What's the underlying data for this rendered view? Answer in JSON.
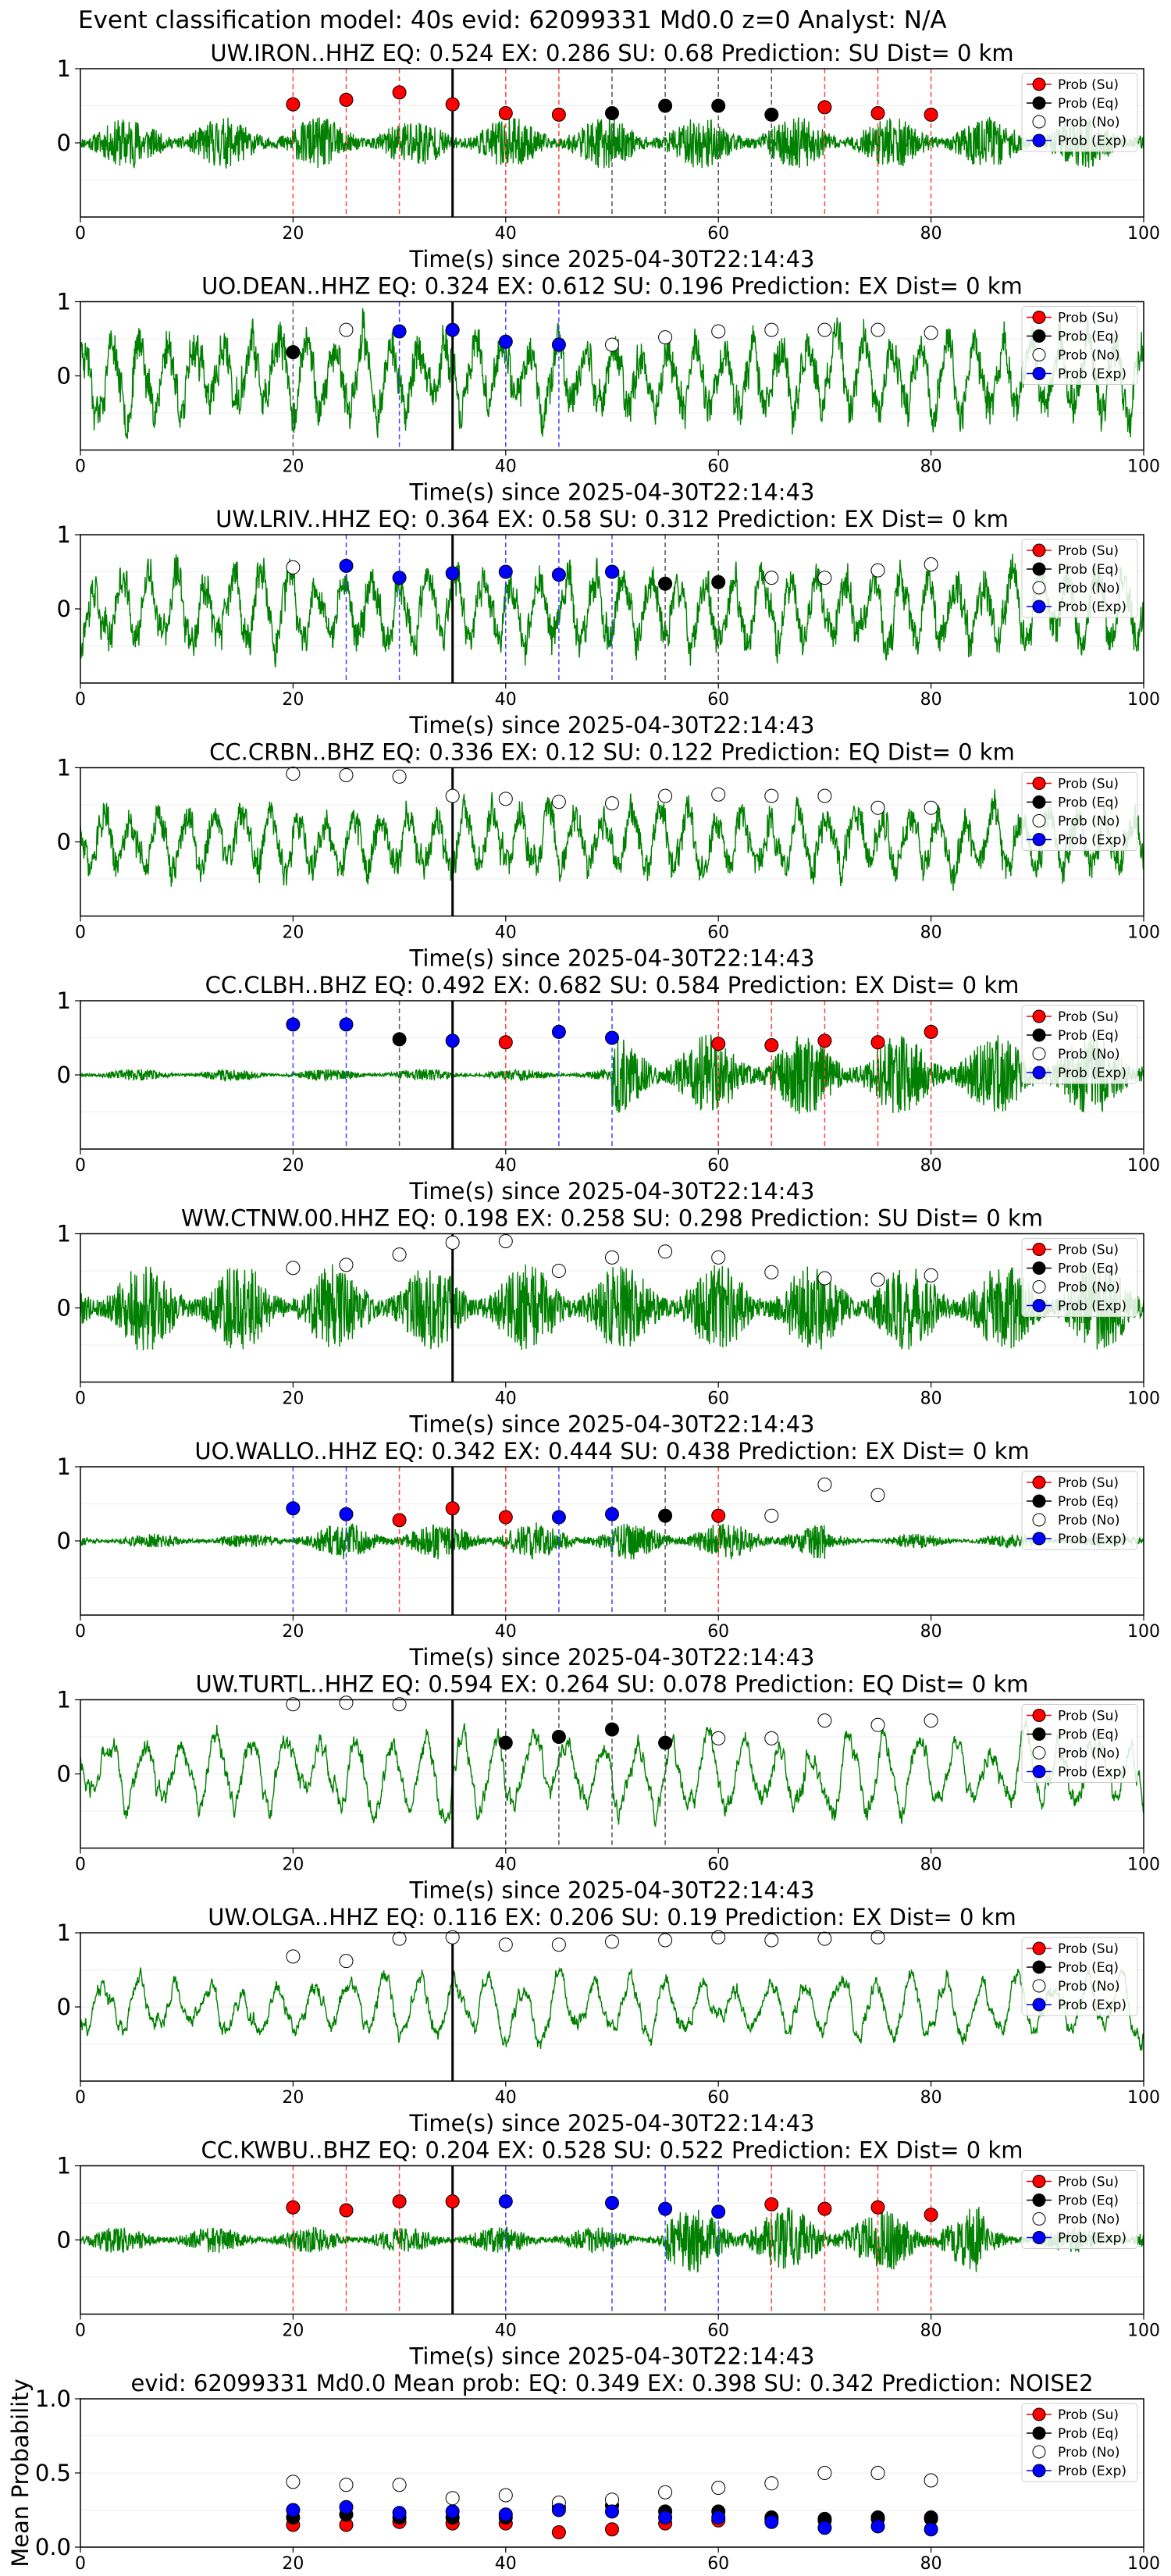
{
  "figure": {
    "suptitle": "Event classification model: 40s evid: 62099331 Md0.0 z=0 Analyst: N/A"
  },
  "legend_labels": [
    "Prob (Su)",
    "Prob (Eq)",
    "Prob (No)",
    "Prob (Exp)"
  ],
  "colors": {
    "waveform": "#008000",
    "su": "#ff0000",
    "eq": "#000000",
    "no": "#ffffff",
    "exp": "#0000ff",
    "event_line": "#000000"
  },
  "chart_data": [
    {
      "type": "line",
      "panel": "waveform",
      "title": "UW.IRON..HHZ   EQ: 0.524  EX: 0.286  SU: 0.68   Prediction: SU    Dist= 0 km",
      "xlabel": "Time(s) since 2025-04-30T22:14:43",
      "xlim": [
        0,
        100
      ],
      "ylim": [
        -1,
        1
      ],
      "xticks": [
        0,
        20,
        40,
        60,
        80,
        100
      ],
      "yticks": [
        0,
        1
      ],
      "event_line_x": 35,
      "noise_amp": 0.35,
      "seed": 11,
      "style": "noisy",
      "burst": null,
      "windows": [
        {
          "x": 20,
          "p": 0.52,
          "c": "su"
        },
        {
          "x": 25,
          "p": 0.58,
          "c": "su"
        },
        {
          "x": 30,
          "p": 0.68,
          "c": "su"
        },
        {
          "x": 35,
          "p": 0.52,
          "c": "su"
        },
        {
          "x": 40,
          "p": 0.4,
          "c": "su"
        },
        {
          "x": 45,
          "p": 0.38,
          "c": "su"
        },
        {
          "x": 50,
          "p": 0.4,
          "c": "eq"
        },
        {
          "x": 55,
          "p": 0.5,
          "c": "eq"
        },
        {
          "x": 60,
          "p": 0.5,
          "c": "eq"
        },
        {
          "x": 65,
          "p": 0.38,
          "c": "eq"
        },
        {
          "x": 70,
          "p": 0.48,
          "c": "su"
        },
        {
          "x": 75,
          "p": 0.4,
          "c": "su"
        },
        {
          "x": 80,
          "p": 0.38,
          "c": "su"
        }
      ]
    },
    {
      "type": "line",
      "panel": "waveform",
      "title": "UO.DEAN..HHZ   EQ: 0.324  EX: 0.612  SU: 0.196   Prediction: EX    Dist= 0 km",
      "xlabel": "Time(s) since 2025-04-30T22:14:43",
      "xlim": [
        0,
        100
      ],
      "ylim": [
        -1,
        1
      ],
      "xticks": [
        0,
        20,
        40,
        60,
        80,
        100
      ],
      "yticks": [
        0,
        1
      ],
      "event_line_x": 35,
      "noise_amp": 0.7,
      "seed": 23,
      "style": "wavy",
      "burst": null,
      "windows": [
        {
          "x": 20,
          "p": 0.32,
          "c": "eq"
        },
        {
          "x": 25,
          "p": 0.62,
          "c": "no"
        },
        {
          "x": 30,
          "p": 0.6,
          "c": "exp"
        },
        {
          "x": 35,
          "p": 0.62,
          "c": "exp"
        },
        {
          "x": 40,
          "p": 0.46,
          "c": "exp"
        },
        {
          "x": 45,
          "p": 0.42,
          "c": "exp"
        },
        {
          "x": 50,
          "p": 0.42,
          "c": "no"
        },
        {
          "x": 55,
          "p": 0.52,
          "c": "no"
        },
        {
          "x": 60,
          "p": 0.6,
          "c": "no"
        },
        {
          "x": 65,
          "p": 0.62,
          "c": "no"
        },
        {
          "x": 70,
          "p": 0.62,
          "c": "no"
        },
        {
          "x": 75,
          "p": 0.62,
          "c": "no"
        },
        {
          "x": 80,
          "p": 0.58,
          "c": "no"
        }
      ]
    },
    {
      "type": "line",
      "panel": "waveform",
      "title": "UW.LRIV..HHZ   EQ: 0.364  EX: 0.58  SU: 0.312   Prediction: EX    Dist= 0 km",
      "xlabel": "Time(s) since 2025-04-30T22:14:43",
      "xlim": [
        0,
        100
      ],
      "ylim": [
        -1,
        1
      ],
      "xticks": [
        0,
        20,
        40,
        60,
        80,
        100
      ],
      "yticks": [
        0,
        1
      ],
      "event_line_x": 35,
      "noise_amp": 0.65,
      "seed": 37,
      "style": "wavy",
      "burst": null,
      "windows": [
        {
          "x": 20,
          "p": 0.56,
          "c": "no"
        },
        {
          "x": 25,
          "p": 0.58,
          "c": "exp"
        },
        {
          "x": 30,
          "p": 0.42,
          "c": "exp"
        },
        {
          "x": 35,
          "p": 0.48,
          "c": "exp"
        },
        {
          "x": 40,
          "p": 0.5,
          "c": "exp"
        },
        {
          "x": 45,
          "p": 0.46,
          "c": "exp"
        },
        {
          "x": 50,
          "p": 0.5,
          "c": "exp"
        },
        {
          "x": 55,
          "p": 0.34,
          "c": "eq"
        },
        {
          "x": 60,
          "p": 0.36,
          "c": "eq"
        },
        {
          "x": 65,
          "p": 0.42,
          "c": "no"
        },
        {
          "x": 70,
          "p": 0.42,
          "c": "no"
        },
        {
          "x": 75,
          "p": 0.52,
          "c": "no"
        },
        {
          "x": 80,
          "p": 0.6,
          "c": "no"
        }
      ]
    },
    {
      "type": "line",
      "panel": "waveform",
      "title": "CC.CRBN..BHZ   EQ: 0.336  EX: 0.12  SU: 0.122   Prediction: EQ    Dist= 0 km",
      "xlabel": "Time(s) since 2025-04-30T22:14:43",
      "xlim": [
        0,
        100
      ],
      "ylim": [
        -1,
        1
      ],
      "xticks": [
        0,
        20,
        40,
        60,
        80,
        100
      ],
      "yticks": [
        0,
        1
      ],
      "event_line_x": 35,
      "noise_amp": 0.55,
      "seed": 51,
      "style": "wavy",
      "burst": null,
      "windows": [
        {
          "x": 20,
          "p": 0.92,
          "c": "no"
        },
        {
          "x": 25,
          "p": 0.9,
          "c": "no"
        },
        {
          "x": 30,
          "p": 0.88,
          "c": "no"
        },
        {
          "x": 35,
          "p": 0.62,
          "c": "no"
        },
        {
          "x": 40,
          "p": 0.58,
          "c": "no"
        },
        {
          "x": 45,
          "p": 0.54,
          "c": "no"
        },
        {
          "x": 50,
          "p": 0.52,
          "c": "no"
        },
        {
          "x": 55,
          "p": 0.62,
          "c": "no"
        },
        {
          "x": 60,
          "p": 0.64,
          "c": "no"
        },
        {
          "x": 65,
          "p": 0.62,
          "c": "no"
        },
        {
          "x": 70,
          "p": 0.62,
          "c": "no"
        },
        {
          "x": 75,
          "p": 0.46,
          "c": "no"
        },
        {
          "x": 80,
          "p": 0.46,
          "c": "no"
        }
      ]
    },
    {
      "type": "line",
      "panel": "waveform",
      "title": "CC.CLBH..BHZ   EQ: 0.492  EX: 0.682  SU: 0.584   Prediction: EX    Dist= 0 km",
      "xlabel": "Time(s) since 2025-04-30T22:14:43",
      "xlim": [
        0,
        100
      ],
      "ylim": [
        -1,
        1
      ],
      "xticks": [
        0,
        20,
        40,
        60,
        80,
        100
      ],
      "yticks": [
        0,
        1
      ],
      "event_line_x": 35,
      "noise_amp": 0.08,
      "seed": 67,
      "style": "noisy",
      "burst": [
        50,
        100,
        0.55
      ],
      "windows": [
        {
          "x": 20,
          "p": 0.68,
          "c": "exp"
        },
        {
          "x": 25,
          "p": 0.68,
          "c": "exp"
        },
        {
          "x": 30,
          "p": 0.48,
          "c": "eq"
        },
        {
          "x": 35,
          "p": 0.46,
          "c": "exp"
        },
        {
          "x": 40,
          "p": 0.44,
          "c": "su"
        },
        {
          "x": 45,
          "p": 0.58,
          "c": "exp"
        },
        {
          "x": 50,
          "p": 0.5,
          "c": "exp"
        },
        {
          "x": 60,
          "p": 0.42,
          "c": "su"
        },
        {
          "x": 65,
          "p": 0.4,
          "c": "su"
        },
        {
          "x": 70,
          "p": 0.46,
          "c": "su"
        },
        {
          "x": 75,
          "p": 0.44,
          "c": "su"
        },
        {
          "x": 80,
          "p": 0.58,
          "c": "su"
        }
      ]
    },
    {
      "type": "line",
      "panel": "waveform",
      "title": "WW.CTNW.00.HHZ   EQ: 0.198  EX: 0.258  SU: 0.298   Prediction: SU    Dist= 0 km",
      "xlabel": "Time(s) since 2025-04-30T22:14:43",
      "xlim": [
        0,
        100
      ],
      "ylim": [
        -1,
        1
      ],
      "xticks": [
        0,
        20,
        40,
        60,
        80,
        100
      ],
      "yticks": [
        0,
        1
      ],
      "event_line_x": 35,
      "noise_amp": 0.6,
      "seed": 79,
      "style": "noisy",
      "burst": null,
      "windows": [
        {
          "x": 20,
          "p": 0.54,
          "c": "no"
        },
        {
          "x": 25,
          "p": 0.58,
          "c": "no"
        },
        {
          "x": 30,
          "p": 0.72,
          "c": "no"
        },
        {
          "x": 35,
          "p": 0.88,
          "c": "no"
        },
        {
          "x": 40,
          "p": 0.9,
          "c": "no"
        },
        {
          "x": 45,
          "p": 0.5,
          "c": "no"
        },
        {
          "x": 50,
          "p": 0.68,
          "c": "no"
        },
        {
          "x": 55,
          "p": 0.76,
          "c": "no"
        },
        {
          "x": 60,
          "p": 0.68,
          "c": "no"
        },
        {
          "x": 65,
          "p": 0.48,
          "c": "no"
        },
        {
          "x": 70,
          "p": 0.4,
          "c": "no"
        },
        {
          "x": 75,
          "p": 0.38,
          "c": "no"
        },
        {
          "x": 80,
          "p": 0.44,
          "c": "no"
        }
      ]
    },
    {
      "type": "line",
      "panel": "waveform",
      "title": "UO.WALLO..HHZ   EQ: 0.342  EX: 0.444  SU: 0.438   Prediction: EX    Dist= 0 km",
      "xlabel": "Time(s) since 2025-04-30T22:14:43",
      "xlim": [
        0,
        100
      ],
      "ylim": [
        -1,
        1
      ],
      "xticks": [
        0,
        20,
        40,
        60,
        80,
        100
      ],
      "yticks": [
        0,
        1
      ],
      "event_line_x": 35,
      "noise_amp": 0.1,
      "seed": 91,
      "style": "noisy",
      "burst": [
        20,
        70,
        0.25
      ],
      "windows": [
        {
          "x": 20,
          "p": 0.44,
          "c": "exp"
        },
        {
          "x": 25,
          "p": 0.36,
          "c": "exp"
        },
        {
          "x": 30,
          "p": 0.28,
          "c": "su"
        },
        {
          "x": 35,
          "p": 0.44,
          "c": "su"
        },
        {
          "x": 40,
          "p": 0.32,
          "c": "su"
        },
        {
          "x": 45,
          "p": 0.32,
          "c": "exp"
        },
        {
          "x": 50,
          "p": 0.36,
          "c": "exp"
        },
        {
          "x": 55,
          "p": 0.34,
          "c": "eq"
        },
        {
          "x": 60,
          "p": 0.34,
          "c": "su"
        },
        {
          "x": 65,
          "p": 0.34,
          "c": "no"
        },
        {
          "x": 70,
          "p": 0.76,
          "c": "no"
        },
        {
          "x": 75,
          "p": 0.62,
          "c": "no"
        }
      ]
    },
    {
      "type": "line",
      "panel": "waveform",
      "title": "UW.TURTL..HHZ   EQ: 0.594  EX: 0.264  SU: 0.078   Prediction: EQ    Dist= 0 km",
      "xlabel": "Time(s) since 2025-04-30T22:14:43",
      "xlim": [
        0,
        100
      ],
      "ylim": [
        -1,
        1
      ],
      "xticks": [
        0,
        20,
        40,
        60,
        80,
        100
      ],
      "yticks": [
        0,
        1
      ],
      "event_line_x": 35,
      "noise_amp": 0.6,
      "seed": 103,
      "style": "smooth",
      "burst": null,
      "windows": [
        {
          "x": 20,
          "p": 0.94,
          "c": "no"
        },
        {
          "x": 25,
          "p": 0.96,
          "c": "no"
        },
        {
          "x": 30,
          "p": 0.94,
          "c": "no"
        },
        {
          "x": 40,
          "p": 0.42,
          "c": "eq"
        },
        {
          "x": 45,
          "p": 0.5,
          "c": "eq"
        },
        {
          "x": 50,
          "p": 0.6,
          "c": "eq"
        },
        {
          "x": 55,
          "p": 0.42,
          "c": "eq"
        },
        {
          "x": 60,
          "p": 0.48,
          "c": "no"
        },
        {
          "x": 65,
          "p": 0.48,
          "c": "no"
        },
        {
          "x": 70,
          "p": 0.72,
          "c": "no"
        },
        {
          "x": 75,
          "p": 0.66,
          "c": "no"
        },
        {
          "x": 80,
          "p": 0.72,
          "c": "no"
        }
      ]
    },
    {
      "type": "line",
      "panel": "waveform",
      "title": "UW.OLGA..HHZ   EQ: 0.116  EX: 0.206  SU: 0.19   Prediction: EX    Dist= 0 km",
      "xlabel": "Time(s) since 2025-04-30T22:14:43",
      "xlim": [
        0,
        100
      ],
      "ylim": [
        -1,
        1
      ],
      "xticks": [
        0,
        20,
        40,
        60,
        80,
        100
      ],
      "yticks": [
        0,
        1
      ],
      "event_line_x": 35,
      "noise_amp": 0.45,
      "seed": 117,
      "style": "smooth",
      "burst": null,
      "windows": [
        {
          "x": 20,
          "p": 0.68,
          "c": "no"
        },
        {
          "x": 25,
          "p": 0.62,
          "c": "no"
        },
        {
          "x": 30,
          "p": 0.92,
          "c": "no"
        },
        {
          "x": 35,
          "p": 0.94,
          "c": "no"
        },
        {
          "x": 40,
          "p": 0.84,
          "c": "no"
        },
        {
          "x": 45,
          "p": 0.84,
          "c": "no"
        },
        {
          "x": 50,
          "p": 0.88,
          "c": "no"
        },
        {
          "x": 55,
          "p": 0.9,
          "c": "no"
        },
        {
          "x": 60,
          "p": 0.94,
          "c": "no"
        },
        {
          "x": 65,
          "p": 0.9,
          "c": "no"
        },
        {
          "x": 70,
          "p": 0.92,
          "c": "no"
        },
        {
          "x": 75,
          "p": 0.94,
          "c": "no"
        }
      ]
    },
    {
      "type": "line",
      "panel": "waveform",
      "title": "CC.KWBU..BHZ   EQ: 0.204  EX: 0.528  SU: 0.522   Prediction: EX    Dist= 0 km",
      "xlabel": "Time(s) since 2025-04-30T22:14:43",
      "xlim": [
        0,
        100
      ],
      "ylim": [
        -1,
        1
      ],
      "xticks": [
        0,
        20,
        40,
        60,
        80,
        100
      ],
      "yticks": [
        0,
        1
      ],
      "event_line_x": 35,
      "noise_amp": 0.18,
      "seed": 131,
      "style": "noisy",
      "burst": [
        55,
        85,
        0.45
      ],
      "windows": [
        {
          "x": 20,
          "p": 0.44,
          "c": "su"
        },
        {
          "x": 25,
          "p": 0.4,
          "c": "su"
        },
        {
          "x": 30,
          "p": 0.52,
          "c": "su"
        },
        {
          "x": 35,
          "p": 0.52,
          "c": "su"
        },
        {
          "x": 40,
          "p": 0.52,
          "c": "exp"
        },
        {
          "x": 50,
          "p": 0.5,
          "c": "exp"
        },
        {
          "x": 55,
          "p": 0.42,
          "c": "exp"
        },
        {
          "x": 60,
          "p": 0.38,
          "c": "exp"
        },
        {
          "x": 65,
          "p": 0.48,
          "c": "su"
        },
        {
          "x": 70,
          "p": 0.42,
          "c": "su"
        },
        {
          "x": 75,
          "p": 0.44,
          "c": "su"
        },
        {
          "x": 80,
          "p": 0.34,
          "c": "su"
        }
      ]
    },
    {
      "type": "scatter",
      "panel": "summary",
      "title": "evid: 62099331  Md0.0   Mean prob:   EQ: 0.349  EX: 0.398  SU: 0.342   Prediction: NOISE2",
      "ylabel": "Mean Probability",
      "xlim": [
        0,
        100
      ],
      "ylim": [
        0,
        1
      ],
      "xticks": [
        0,
        20,
        40,
        60,
        80,
        100
      ],
      "yticks": [
        0.0,
        0.5,
        1.0
      ],
      "x": [
        20,
        25,
        30,
        35,
        40,
        45,
        50,
        55,
        60,
        65,
        70,
        75,
        80
      ],
      "series": [
        {
          "name": "Prob (Su)",
          "c": "su",
          "values": [
            0.15,
            0.15,
            0.17,
            0.16,
            0.16,
            0.1,
            0.12,
            0.16,
            0.18,
            0.19,
            0.18,
            0.19,
            0.19
          ]
        },
        {
          "name": "Prob (Eq)",
          "c": "eq",
          "values": [
            0.2,
            0.22,
            0.2,
            0.2,
            0.2,
            0.27,
            0.28,
            0.24,
            0.24,
            0.2,
            0.19,
            0.2,
            0.2
          ]
        },
        {
          "name": "Prob (No)",
          "c": "no",
          "values": [
            0.44,
            0.42,
            0.42,
            0.33,
            0.35,
            0.3,
            0.32,
            0.37,
            0.4,
            0.43,
            0.5,
            0.5,
            0.45
          ]
        },
        {
          "name": "Prob (Exp)",
          "c": "exp",
          "values": [
            0.25,
            0.27,
            0.23,
            0.24,
            0.22,
            0.25,
            0.24,
            0.2,
            0.2,
            0.17,
            0.13,
            0.14,
            0.12
          ]
        }
      ]
    }
  ]
}
